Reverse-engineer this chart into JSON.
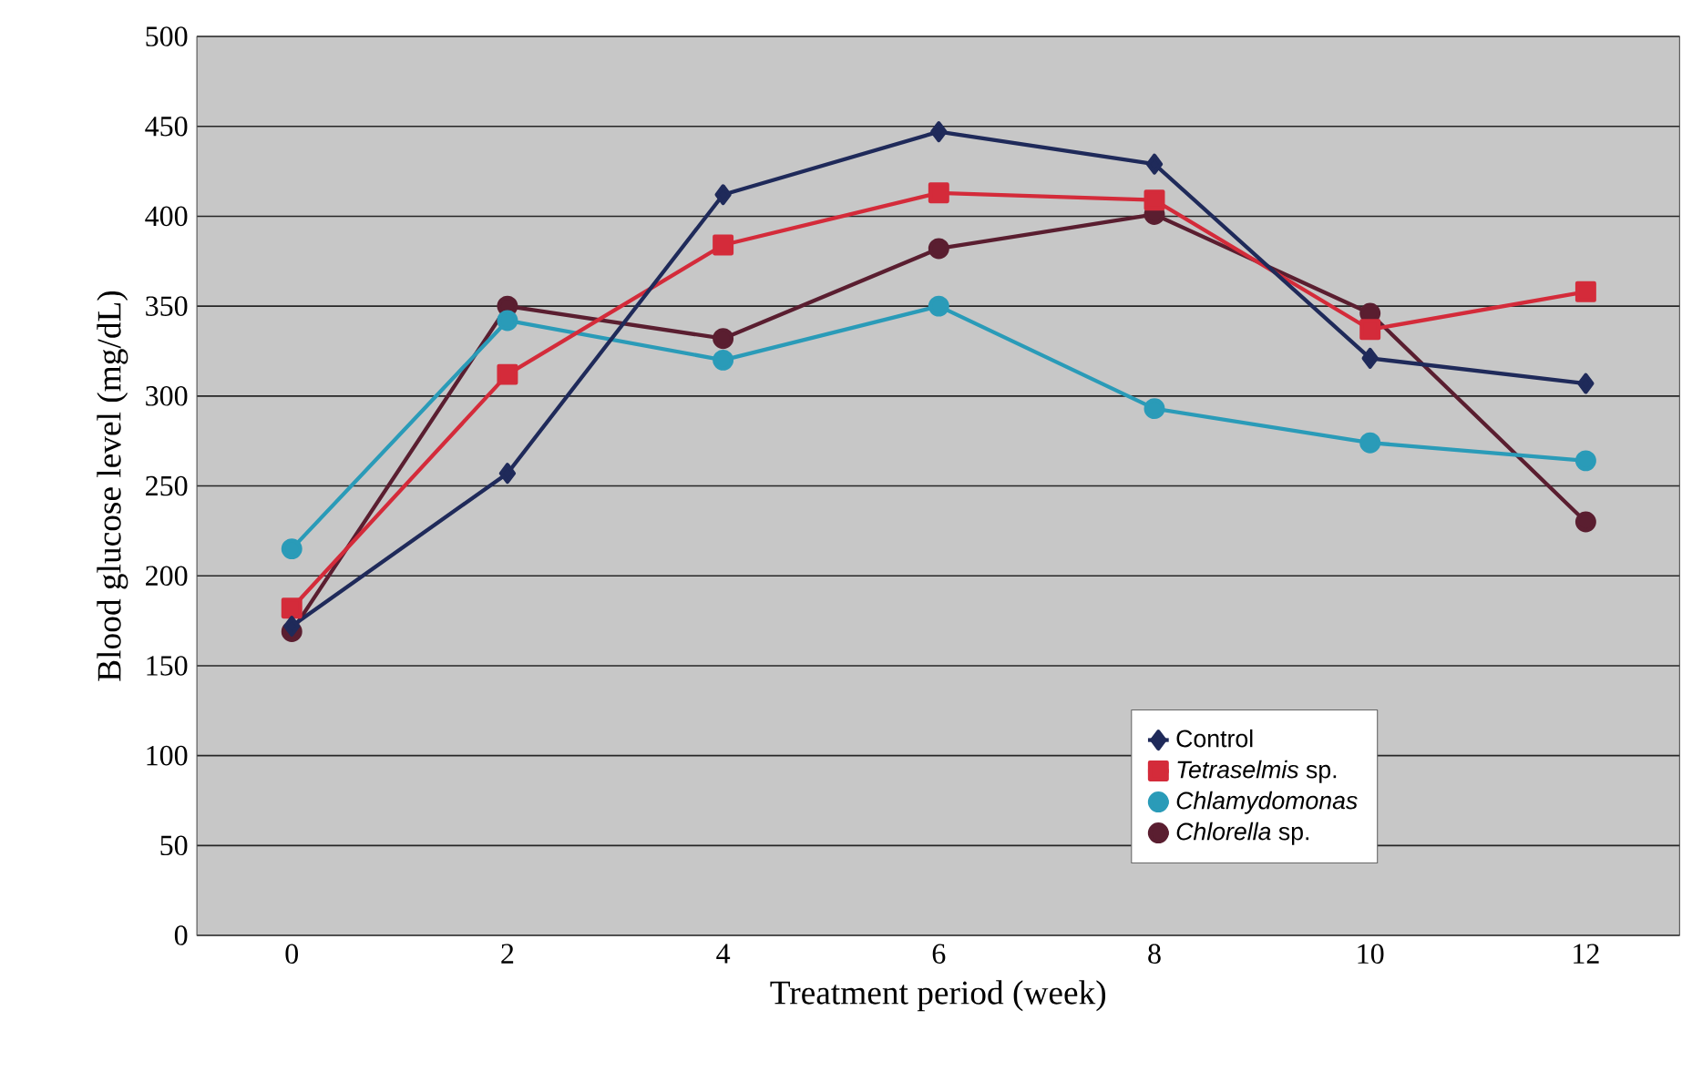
{
  "chart_data": {
    "type": "line",
    "xlabel": "Treatment period (week)",
    "ylabel": "Blood glucose level (mg/dL)",
    "categories": [
      "0",
      "2",
      "4",
      "6",
      "8",
      "10",
      "12"
    ],
    "series": [
      {
        "name": "Control",
        "color": "#1f2a5a",
        "marker": "diamond",
        "values": [
          172,
          257,
          412,
          447,
          429,
          321,
          307
        ]
      },
      {
        "name": "*Tetraselmis* sp.",
        "color": "#d42b3a",
        "marker": "square",
        "values": [
          182,
          312,
          384,
          413,
          409,
          337,
          358
        ]
      },
      {
        "name": "*Chlamydomonas*",
        "color": "#2a9bb8",
        "marker": "circle",
        "values": [
          215,
          342,
          320,
          350,
          293,
          274,
          264
        ]
      },
      {
        "name": "*Chlorella* sp.",
        "color": "#5a1e30",
        "marker": "circle",
        "values": [
          169,
          350,
          332,
          382,
          401,
          346,
          230
        ]
      }
    ],
    "ylim": [
      0,
      500
    ],
    "yticks": [
      0,
      50,
      100,
      150,
      200,
      250,
      300,
      350,
      400,
      450,
      500
    ],
    "grid": "y",
    "legend": "bottom right",
    "line_style": "solid"
  }
}
